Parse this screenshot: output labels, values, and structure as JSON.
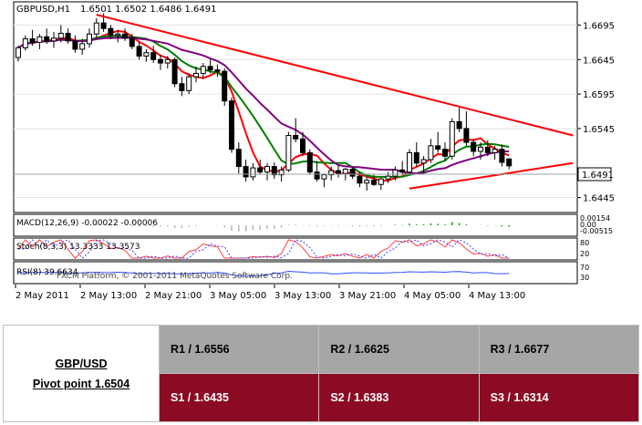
{
  "chart_data": {
    "type": "candlestick",
    "header": {
      "symbol": "GBPUSD,H1",
      "ohlc": "1.6501 1.6502 1.6486 1.6491"
    },
    "price_axis": {
      "ticks": [
        "1.6695",
        "1.6645",
        "1.6595",
        "1.6545",
        "1.6445"
      ],
      "current_price": "1.6491",
      "ylim": [
        1.6426,
        1.6726
      ]
    },
    "time_axis": {
      "labels": [
        "2 May 2011",
        "2 May 13:00",
        "2 May 21:00",
        "3 May 05:00",
        "3 May 13:00",
        "3 May 21:00",
        "4 May 05:00",
        "4 May 13:00"
      ]
    },
    "candles": [
      [
        1.6648,
        1.6665,
        1.6642,
        1.6662
      ],
      [
        1.6662,
        1.668,
        1.6658,
        1.6675
      ],
      [
        1.6675,
        1.6688,
        1.6665,
        1.667
      ],
      [
        1.667,
        1.6682,
        1.666,
        1.6678
      ],
      [
        1.6678,
        1.669,
        1.6668,
        1.6672
      ],
      [
        1.6672,
        1.6685,
        1.6662,
        1.6676
      ],
      [
        1.6676,
        1.6695,
        1.667,
        1.6683
      ],
      [
        1.6683,
        1.669,
        1.6668,
        1.6672
      ],
      [
        1.6672,
        1.668,
        1.6655,
        1.666
      ],
      [
        1.666,
        1.6675,
        1.6652,
        1.6668
      ],
      [
        1.6668,
        1.669,
        1.6662,
        1.6682
      ],
      [
        1.6682,
        1.6705,
        1.6676,
        1.6698
      ],
      [
        1.6698,
        1.6712,
        1.6685,
        1.669
      ],
      [
        1.669,
        1.6695,
        1.6675,
        1.668
      ],
      [
        1.668,
        1.6688,
        1.667,
        1.6682
      ],
      [
        1.6682,
        1.669,
        1.6672,
        1.6676
      ],
      [
        1.6676,
        1.6682,
        1.666,
        1.6664
      ],
      [
        1.6664,
        1.667,
        1.6645,
        1.665
      ],
      [
        1.665,
        1.666,
        1.6642,
        1.6655
      ],
      [
        1.6655,
        1.6665,
        1.664,
        1.6645
      ],
      [
        1.6645,
        1.6652,
        1.663,
        1.664
      ],
      [
        1.664,
        1.665,
        1.6632,
        1.6645
      ],
      [
        1.6645,
        1.6648,
        1.6605,
        1.661
      ],
      [
        1.661,
        1.662,
        1.6592,
        1.66
      ],
      [
        1.66,
        1.6625,
        1.6595,
        1.662
      ],
      [
        1.662,
        1.6635,
        1.6612,
        1.6625
      ],
      [
        1.6625,
        1.664,
        1.6618,
        1.6635
      ],
      [
        1.6635,
        1.6645,
        1.6625,
        1.663
      ],
      [
        1.663,
        1.6638,
        1.662,
        1.6628
      ],
      [
        1.6628,
        1.6632,
        1.6578,
        1.6585
      ],
      [
        1.6585,
        1.659,
        1.651,
        1.6515
      ],
      [
        1.6515,
        1.6525,
        1.648,
        1.649
      ],
      [
        1.649,
        1.65,
        1.6468,
        1.6475
      ],
      [
        1.6475,
        1.6495,
        1.647,
        1.6488
      ],
      [
        1.6488,
        1.65,
        1.6478,
        1.6482
      ],
      [
        1.6482,
        1.6495,
        1.647,
        1.649
      ],
      [
        1.649,
        1.6496,
        1.6472,
        1.6478
      ],
      [
        1.6478,
        1.649,
        1.6468,
        1.6485
      ],
      [
        1.6485,
        1.654,
        1.6482,
        1.6535
      ],
      [
        1.6535,
        1.656,
        1.6525,
        1.653
      ],
      [
        1.653,
        1.654,
        1.6505,
        1.651
      ],
      [
        1.651,
        1.6515,
        1.6478,
        1.6482
      ],
      [
        1.6482,
        1.6498,
        1.6468,
        1.6472
      ],
      [
        1.6472,
        1.648,
        1.646,
        1.6478
      ],
      [
        1.6478,
        1.649,
        1.647,
        1.6484
      ],
      [
        1.6484,
        1.6492,
        1.6474,
        1.648
      ],
      [
        1.648,
        1.6488,
        1.647,
        1.6486
      ],
      [
        1.6486,
        1.649,
        1.6472,
        1.6476
      ],
      [
        1.6476,
        1.6482,
        1.646,
        1.6466
      ],
      [
        1.6466,
        1.6475,
        1.6455,
        1.647
      ],
      [
        1.647,
        1.6478,
        1.6462,
        1.6464
      ],
      [
        1.6464,
        1.6474,
        1.6456,
        1.6472
      ],
      [
        1.6472,
        1.6482,
        1.6466,
        1.6476
      ],
      [
        1.6476,
        1.649,
        1.647,
        1.6485
      ],
      [
        1.6485,
        1.6498,
        1.6478,
        1.6482
      ],
      [
        1.6482,
        1.6515,
        1.6478,
        1.651
      ],
      [
        1.651,
        1.6525,
        1.649,
        1.6495
      ],
      [
        1.6495,
        1.6505,
        1.648,
        1.65
      ],
      [
        1.65,
        1.653,
        1.6495,
        1.652
      ],
      [
        1.652,
        1.654,
        1.651,
        1.6515
      ],
      [
        1.6515,
        1.6525,
        1.6498,
        1.6505
      ],
      [
        1.6505,
        1.656,
        1.65,
        1.6555
      ],
      [
        1.6555,
        1.6575,
        1.654,
        1.6545
      ],
      [
        1.6545,
        1.657,
        1.652,
        1.6525
      ],
      [
        1.6525,
        1.653,
        1.6505,
        1.6512
      ],
      [
        1.6512,
        1.6525,
        1.65,
        1.6518
      ],
      [
        1.6518,
        1.6528,
        1.6505,
        1.651
      ],
      [
        1.651,
        1.652,
        1.65,
        1.6515
      ],
      [
        1.6515,
        1.6522,
        1.649,
        1.6496
      ],
      [
        1.6501,
        1.6502,
        1.6486,
        1.6491
      ]
    ],
    "moving_averages": [
      {
        "color": "#ff0000"
      },
      {
        "color": "#008000"
      },
      {
        "color": "#800080"
      }
    ],
    "trendlines": [
      {
        "color": "#ff0000",
        "from": [
          11,
          1.671
        ],
        "to": [
          78,
          1.6535
        ]
      },
      {
        "color": "#ff0000",
        "from": [
          55,
          1.6458
        ],
        "to": [
          78,
          1.6495
        ]
      }
    ],
    "indicators": {
      "macd": {
        "label": "MACD(12,26,9) -0.00022 -0.00006",
        "axis": [
          "0.00154",
          "0.00",
          "-0.00515"
        ]
      },
      "stoch": {
        "label": "Stoch(8,3,3) 13.3333 13.3573",
        "axis": [
          "80",
          "20"
        ]
      },
      "rsi": {
        "label": "RSI(8) 39.6634",
        "axis": [
          "70",
          "30"
        ]
      }
    },
    "watermark": "FXCM Platform, © 2001-2011 MetaQuotes Software Corp."
  },
  "pivot_table": {
    "pair": "GBP/USD",
    "pivot": "Pivot point 1.6504",
    "resistance": [
      "R1 / 1.6556",
      "R2 / 1.6625",
      "R3 / 1.6677"
    ],
    "support": [
      "S1 / 1.6435",
      "S2 / 1.6383",
      "S3 / 1.6314"
    ]
  }
}
